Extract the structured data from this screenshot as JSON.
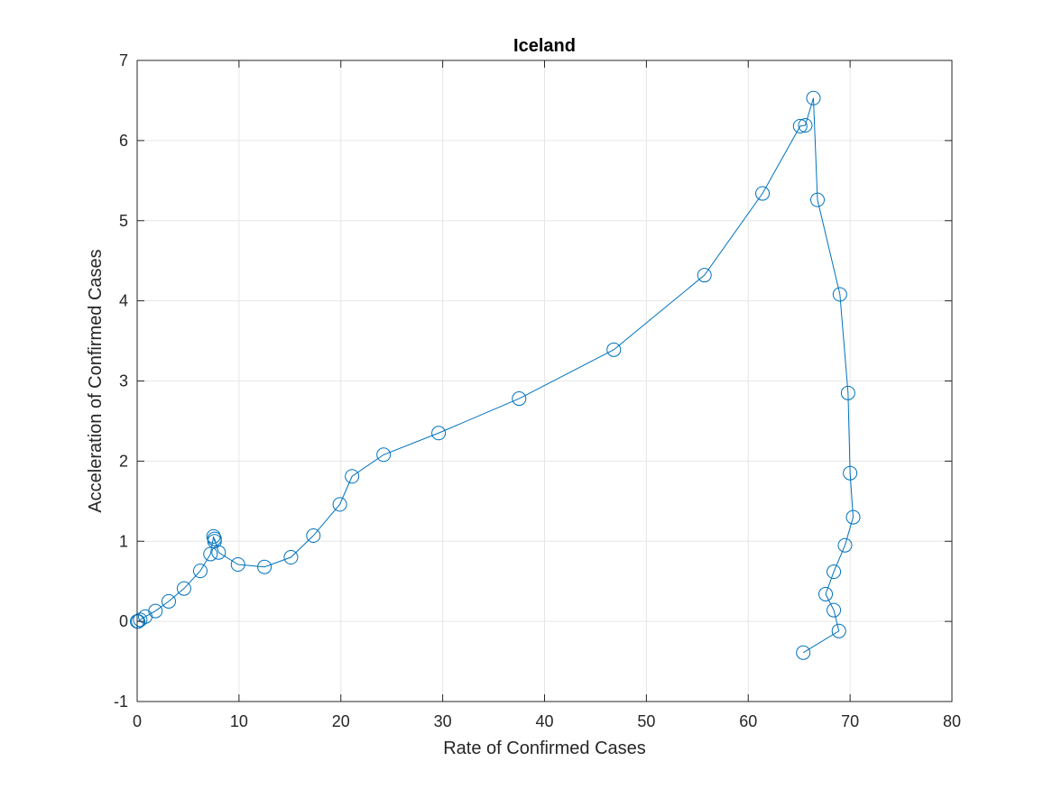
{
  "chart_data": {
    "type": "line",
    "title": "Iceland",
    "xlabel": "Rate of Confirmed Cases",
    "ylabel": "Acceleration of Confirmed Cases",
    "xlim": [
      0,
      80
    ],
    "ylim": [
      -1,
      7
    ],
    "xticks": [
      0,
      10,
      20,
      30,
      40,
      50,
      60,
      70,
      80
    ],
    "yticks": [
      -1,
      0,
      1,
      2,
      3,
      4,
      5,
      6,
      7
    ],
    "xtick_labels": [
      "0",
      "10",
      "20",
      "30",
      "40",
      "50",
      "60",
      "70",
      "80"
    ],
    "ytick_labels": [
      "-1",
      "0",
      "1",
      "2",
      "3",
      "4",
      "5",
      "6",
      "7"
    ],
    "grid": true,
    "marker": "circle",
    "line_color": "#0072BD",
    "series": [
      {
        "x": [
          0.0,
          0.1,
          0.3,
          0.8,
          1.8,
          3.1,
          4.6,
          6.2,
          7.2,
          7.5,
          7.6,
          7.6,
          8.0,
          9.9,
          12.5,
          15.1,
          17.3,
          19.9,
          21.1,
          24.2,
          29.6,
          37.5,
          46.8,
          55.7,
          61.4,
          65.1,
          65.6,
          66.4,
          66.8,
          69.0,
          69.8,
          70.0,
          70.3,
          69.5,
          68.4,
          67.6,
          68.4,
          68.9,
          65.4
        ],
        "y": [
          0.0,
          0.0,
          0.02,
          0.06,
          0.13,
          0.25,
          0.41,
          0.63,
          0.84,
          1.06,
          1.0,
          1.03,
          0.86,
          0.71,
          0.68,
          0.8,
          1.07,
          1.46,
          1.81,
          2.08,
          2.35,
          2.78,
          3.39,
          4.32,
          5.34,
          6.18,
          6.19,
          6.53,
          5.26,
          4.08,
          2.85,
          1.85,
          1.3,
          0.95,
          0.62,
          0.34,
          0.14,
          -0.12,
          -0.39
        ]
      }
    ]
  }
}
